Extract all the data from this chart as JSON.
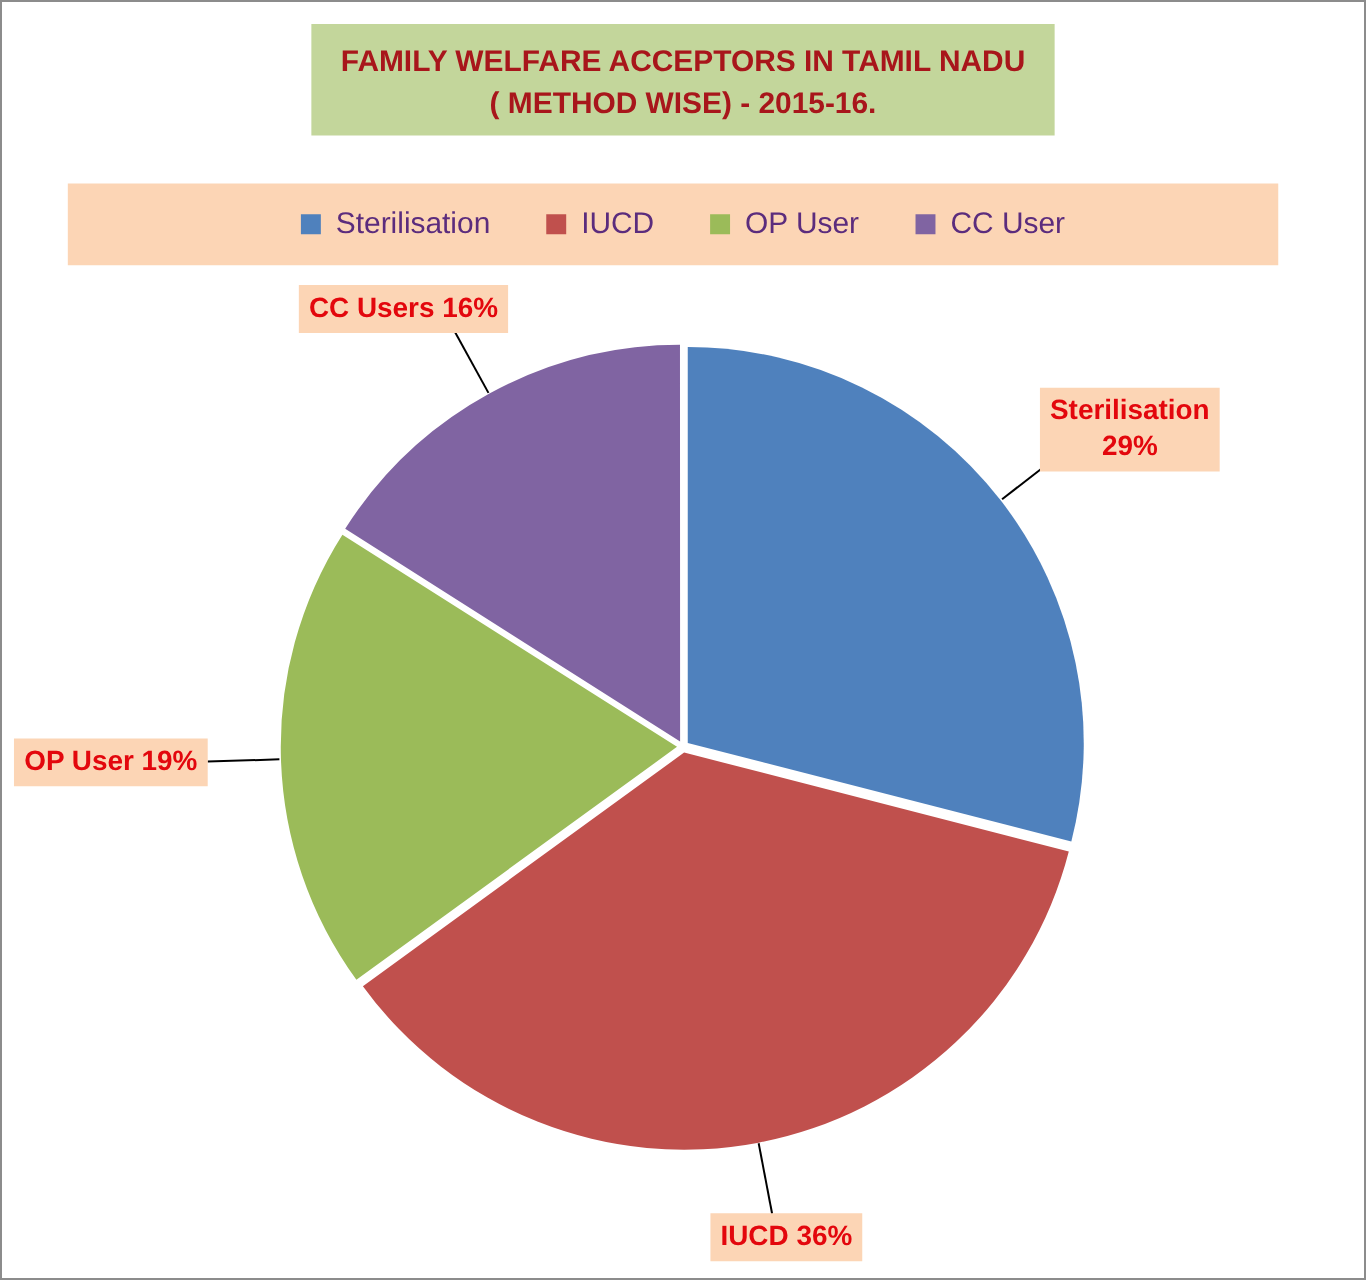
{
  "chart_data": {
    "type": "pie",
    "title": "FAMILY WELFARE ACCEPTORS IN TAMIL NADU ( METHOD WISE) - 2015-16.",
    "categories": [
      "Sterilisation",
      "IUCD",
      "OP User",
      "CC User"
    ],
    "values": [
      29,
      36,
      19,
      16
    ],
    "colors": [
      "#4f81bd",
      "#c0504d",
      "#9bbb59",
      "#8064a2"
    ],
    "value_labels": [
      "Sterilisation 29%",
      "IUCD 36%",
      "OP User 19%",
      "CC Users 16%"
    ],
    "legend": "top"
  }
}
